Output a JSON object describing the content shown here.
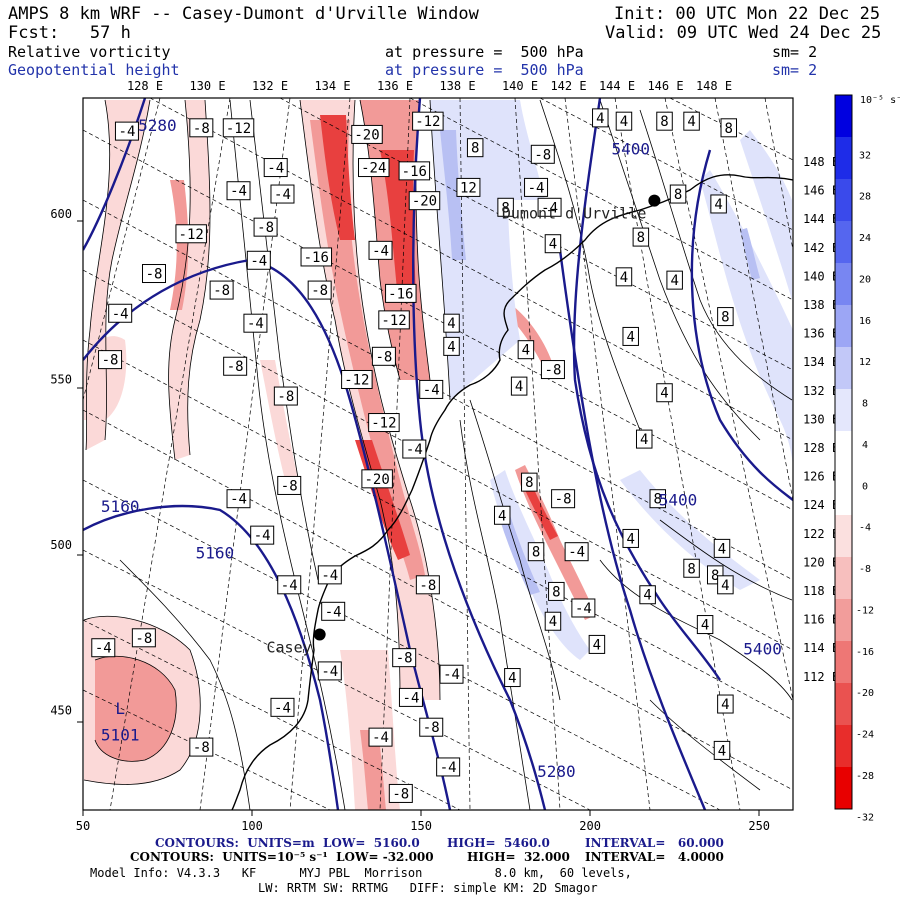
{
  "header": {
    "model_title": "AMPS 8 km WRF -- Casey-Dumont d'Urville Window",
    "init": "Init: 00 UTC Mon 22 Dec 25",
    "forecast": "Fcst:   57 h",
    "valid": "Valid: 09 UTC Wed 24 Dec 25",
    "field1_name": "Relative vorticity",
    "field1_level": "at pressure =  500 hPa",
    "field1_sm": "sm= 2",
    "field2_name": "Geopotential height",
    "field2_level": "at pressure =  500 hPa",
    "field2_sm": "sm= 2"
  },
  "footer": {
    "line1_a": "CONTOURS:  UNITS=m  LOW=  5160.0",
    "line1_b": "HIGH=  5460.0",
    "line1_c": "INTERVAL=   60.000",
    "line2_a": "CONTOURS:  UNITS=10⁻⁵ s⁻¹  LOW= -32.000",
    "line2_b": "HIGH=  32.000",
    "line2_c": "INTERVAL=   4.0000",
    "line3": "Model Info: V4.3.3   KF      MYJ PBL  Morrison          8.0 km,  60 levels,",
    "line4": "LW: RRTM SW: RRTMG   DIFF: simple KM: 2D Smagor"
  },
  "colors": {
    "height_contour": "#1a1a8c",
    "coast": "#000000",
    "red_strong": "#e8403f",
    "red_mid": "#f29a98",
    "red_light": "#fbd9d8",
    "blue_light": "#dfe3fb",
    "blue_mid": "#b8c0f3"
  },
  "chart_data": {
    "type": "contour_map",
    "title": "Relative vorticity and Geopotential height at 500 hPa",
    "x_axis": {
      "range": [
        50,
        260
      ],
      "ticks": [
        "50",
        "100",
        "150",
        "200",
        "250"
      ]
    },
    "y_axis": {
      "range": [
        420,
        635
      ],
      "ticks": [
        "450",
        "500",
        "550",
        "600"
      ]
    },
    "top_lon_labels": [
      "128 E",
      "130 E",
      "132 E",
      "134 E",
      "136 E",
      "138 E",
      "140 E",
      "142 E",
      "144 E",
      "146 E",
      "148 E"
    ],
    "right_lon_labels": [
      "148 E",
      "146 E",
      "144 E",
      "142 E",
      "140 E",
      "138 E",
      "136 E",
      "134 E",
      "132 E",
      "130 E",
      "128 E",
      "126 E",
      "124 E",
      "122 E",
      "120 E",
      "118 E",
      "116 E",
      "114 E",
      "112 E"
    ],
    "colorbar": {
      "unit_label": "10⁻⁵ s⁻¹",
      "ticks": [
        "32",
        "28",
        "24",
        "20",
        "16",
        "12",
        "8",
        "4",
        "0",
        "-4",
        "-8",
        "-12",
        "-16",
        "-20",
        "-24",
        "-28",
        "-32"
      ],
      "colors": [
        "#0000e0",
        "#1e2ce8",
        "#3a4aeb",
        "#5566ef",
        "#7886f2",
        "#9ca6f5",
        "#c2c8f8",
        "#e4e7fc",
        "#ffffff",
        "#ffffff",
        "#fbe0df",
        "#f7bfbe",
        "#f29d9b",
        "#ee7775",
        "#ea5250",
        "#e82d2b",
        "#e80000"
      ]
    },
    "stations": [
      {
        "name": "Casey",
        "x": 120,
        "y": 473
      },
      {
        "name": "Dumont d'Urville",
        "x": 219,
        "y": 604
      }
    ],
    "height_labels": [
      {
        "text": "5280",
        "x": 72,
        "y": 625
      },
      {
        "text": "5400",
        "x": 212,
        "y": 618
      },
      {
        "text": "5160",
        "x": 61,
        "y": 510
      },
      {
        "text": "5160",
        "x": 89,
        "y": 496
      },
      {
        "text": "5400",
        "x": 226,
        "y": 512
      },
      {
        "text": "5400",
        "x": 251,
        "y": 467
      },
      {
        "text": "5280",
        "x": 190,
        "y": 430
      },
      {
        "text": "L",
        "x": 61,
        "y": 449
      },
      {
        "text": "5101",
        "x": 61,
        "y": 441
      }
    ],
    "vorticity_labels": [
      {
        "text": "-4",
        "x": 63,
        "y": 625
      },
      {
        "text": "-8",
        "x": 85,
        "y": 626
      },
      {
        "text": "-12",
        "x": 96,
        "y": 626
      },
      {
        "text": "-4",
        "x": 107,
        "y": 614
      },
      {
        "text": "-4",
        "x": 96,
        "y": 607
      },
      {
        "text": "-4",
        "x": 109,
        "y": 606
      },
      {
        "text": "-8",
        "x": 104,
        "y": 596
      },
      {
        "text": "-12",
        "x": 82,
        "y": 594
      },
      {
        "text": "-4",
        "x": 102,
        "y": 586
      },
      {
        "text": "-8",
        "x": 71,
        "y": 582
      },
      {
        "text": "-8",
        "x": 91,
        "y": 577
      },
      {
        "text": "-4",
        "x": 61,
        "y": 570
      },
      {
        "text": "-4",
        "x": 101,
        "y": 567
      },
      {
        "text": "-8",
        "x": 58,
        "y": 556
      },
      {
        "text": "-8",
        "x": 95,
        "y": 554
      },
      {
        "text": "-8",
        "x": 110,
        "y": 545
      },
      {
        "text": "-8",
        "x": 111,
        "y": 518
      },
      {
        "text": "-4",
        "x": 96,
        "y": 514
      },
      {
        "text": "-4",
        "x": 103,
        "y": 503
      },
      {
        "text": "-4",
        "x": 111,
        "y": 488
      },
      {
        "text": "-4",
        "x": 123,
        "y": 491
      },
      {
        "text": "-4",
        "x": 124,
        "y": 480
      },
      {
        "text": "-8",
        "x": 68,
        "y": 472
      },
      {
        "text": "-4",
        "x": 56,
        "y": 469
      },
      {
        "text": "-4",
        "x": 123,
        "y": 462
      },
      {
        "text": "-4",
        "x": 109,
        "y": 451
      },
      {
        "text": "-8",
        "x": 85,
        "y": 439
      },
      {
        "text": "-20",
        "x": 134,
        "y": 624
      },
      {
        "text": "-24",
        "x": 136,
        "y": 614
      },
      {
        "text": "-12",
        "x": 152,
        "y": 628
      },
      {
        "text": "-16",
        "x": 148,
        "y": 613
      },
      {
        "text": "-20",
        "x": 151,
        "y": 604
      },
      {
        "text": "-16",
        "x": 119,
        "y": 587
      },
      {
        "text": "-4",
        "x": 138,
        "y": 589
      },
      {
        "text": "-8",
        "x": 120,
        "y": 577
      },
      {
        "text": "-16",
        "x": 144,
        "y": 576
      },
      {
        "text": "-12",
        "x": 142,
        "y": 568
      },
      {
        "text": "-8",
        "x": 139,
        "y": 557
      },
      {
        "text": "-12",
        "x": 131,
        "y": 550
      },
      {
        "text": "-4",
        "x": 153,
        "y": 547
      },
      {
        "text": "-12",
        "x": 139,
        "y": 537
      },
      {
        "text": "-4",
        "x": 148,
        "y": 529
      },
      {
        "text": "-20",
        "x": 137,
        "y": 520
      },
      {
        "text": "-8",
        "x": 152,
        "y": 488
      },
      {
        "text": "-8",
        "x": 145,
        "y": 466
      },
      {
        "text": "-4",
        "x": 159,
        "y": 461
      },
      {
        "text": "-4",
        "x": 147,
        "y": 454
      },
      {
        "text": "-8",
        "x": 153,
        "y": 445
      },
      {
        "text": "-4",
        "x": 138,
        "y": 442
      },
      {
        "text": "-4",
        "x": 158,
        "y": 433
      },
      {
        "text": "-8",
        "x": 144,
        "y": 425
      },
      {
        "text": "8",
        "x": 166,
        "y": 620
      },
      {
        "text": "12",
        "x": 164,
        "y": 608
      },
      {
        "text": "8",
        "x": 175,
        "y": 602
      },
      {
        "text": "-8",
        "x": 186,
        "y": 618
      },
      {
        "text": "-4",
        "x": 184,
        "y": 608
      },
      {
        "text": "-4",
        "x": 188,
        "y": 602
      },
      {
        "text": "4",
        "x": 189,
        "y": 591
      },
      {
        "text": "4",
        "x": 159,
        "y": 567
      },
      {
        "text": "4",
        "x": 159,
        "y": 560
      },
      {
        "text": "4",
        "x": 181,
        "y": 559
      },
      {
        "text": "-8",
        "x": 189,
        "y": 553
      },
      {
        "text": "4",
        "x": 179,
        "y": 548
      },
      {
        "text": "8",
        "x": 182,
        "y": 519
      },
      {
        "text": "-8",
        "x": 192,
        "y": 514
      },
      {
        "text": "4",
        "x": 174,
        "y": 509
      },
      {
        "text": "8",
        "x": 184,
        "y": 498
      },
      {
        "text": "-4",
        "x": 196,
        "y": 498
      },
      {
        "text": "8",
        "x": 190,
        "y": 486
      },
      {
        "text": "-4",
        "x": 198,
        "y": 481
      },
      {
        "text": "4",
        "x": 189,
        "y": 477
      },
      {
        "text": "4",
        "x": 202,
        "y": 470
      },
      {
        "text": "4",
        "x": 177,
        "y": 460
      },
      {
        "text": "4",
        "x": 203,
        "y": 629
      },
      {
        "text": "4",
        "x": 210,
        "y": 628
      },
      {
        "text": "8",
        "x": 222,
        "y": 628
      },
      {
        "text": "4",
        "x": 230,
        "y": 628
      },
      {
        "text": "8",
        "x": 241,
        "y": 626
      },
      {
        "text": "8",
        "x": 226,
        "y": 606
      },
      {
        "text": "4",
        "x": 238,
        "y": 603
      },
      {
        "text": "8",
        "x": 215,
        "y": 593
      },
      {
        "text": "4",
        "x": 210,
        "y": 581
      },
      {
        "text": "4",
        "x": 225,
        "y": 580
      },
      {
        "text": "8",
        "x": 240,
        "y": 569
      },
      {
        "text": "4",
        "x": 212,
        "y": 563
      },
      {
        "text": "4",
        "x": 222,
        "y": 546
      },
      {
        "text": "4",
        "x": 216,
        "y": 532
      },
      {
        "text": "8",
        "x": 220,
        "y": 514
      },
      {
        "text": "4",
        "x": 212,
        "y": 502
      },
      {
        "text": "4",
        "x": 239,
        "y": 499
      },
      {
        "text": "8",
        "x": 230,
        "y": 493
      },
      {
        "text": "8",
        "x": 237,
        "y": 491
      },
      {
        "text": "4",
        "x": 217,
        "y": 485
      },
      {
        "text": "4",
        "x": 234,
        "y": 476
      },
      {
        "text": "4",
        "x": 240,
        "y": 488
      },
      {
        "text": "4",
        "x": 240,
        "y": 452
      },
      {
        "text": "4",
        "x": 239,
        "y": 438
      }
    ]
  }
}
